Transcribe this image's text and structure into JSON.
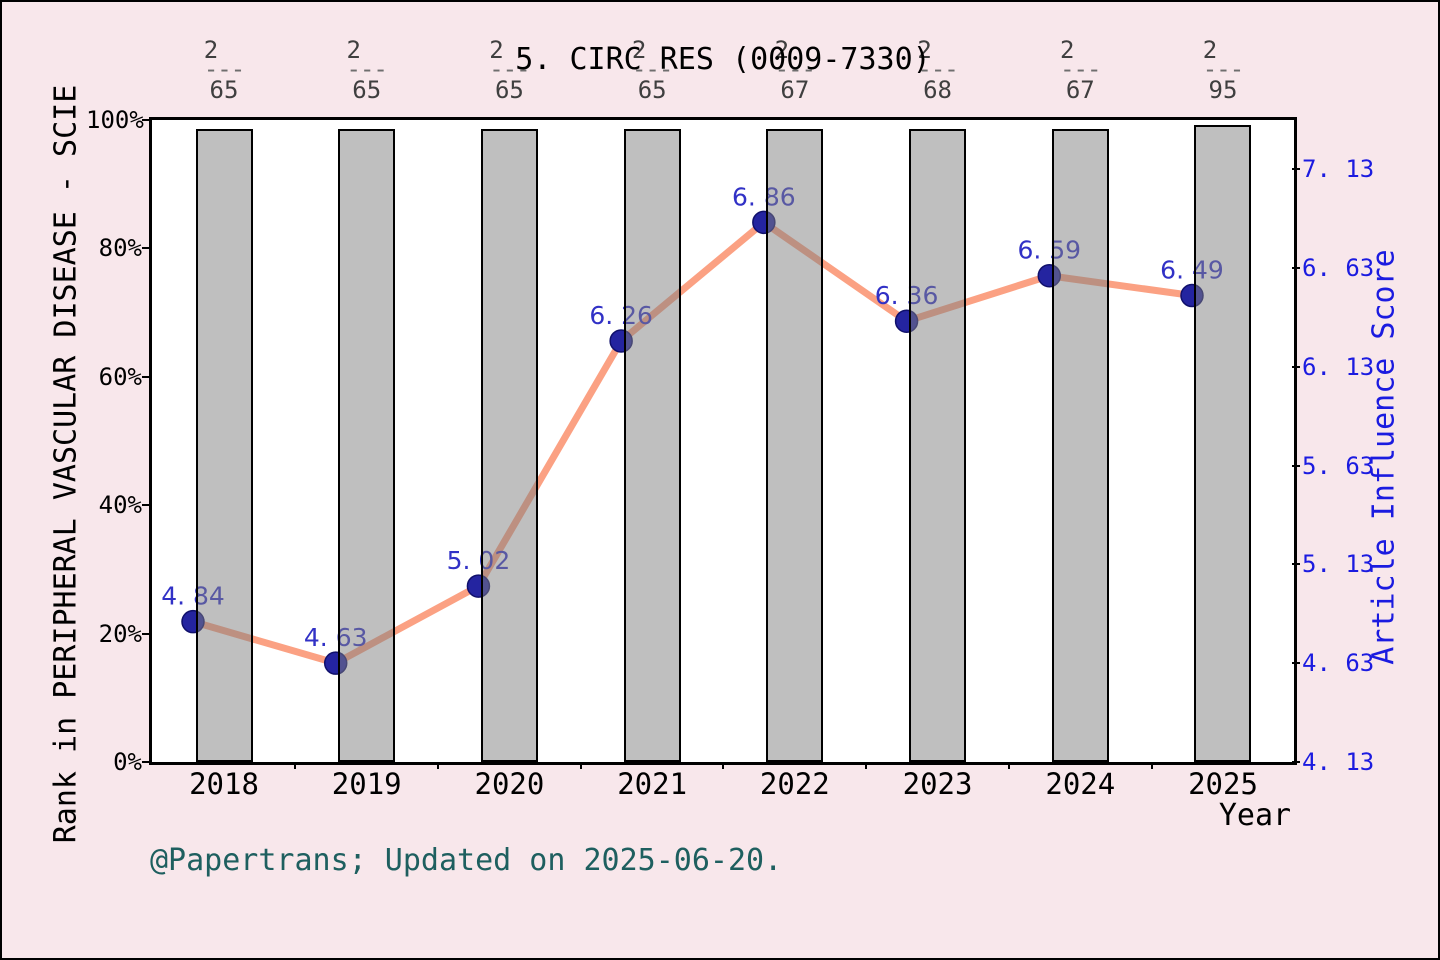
{
  "title": "5. CIRC RES (0009-7330)",
  "footer": "@Papertrans; Updated on 2025-06-20.",
  "axes": {
    "left_title": "Rank in PERIPHERAL VASCULAR DISEASE - SCIE",
    "right_title": "Article Influence Score",
    "x_title": "Year",
    "left_ticks": [
      "100%",
      "80%",
      "60%",
      "40%",
      "20%",
      "0%"
    ],
    "right_ticks": [
      "7. 13",
      "6. 63",
      "6. 13",
      "5. 63",
      "5. 13",
      "4. 63",
      "4. 13"
    ],
    "x_ticks": [
      "2018",
      "2019",
      "2020",
      "2021",
      "2022",
      "2023",
      "2024",
      "2025"
    ]
  },
  "fractions": [
    {
      "num": "2",
      "den": "65"
    },
    {
      "num": "2",
      "den": "65"
    },
    {
      "num": "2",
      "den": "65"
    },
    {
      "num": "2",
      "den": "65"
    },
    {
      "num": "2",
      "den": "67"
    },
    {
      "num": "2",
      "den": "68"
    },
    {
      "num": "2",
      "den": "67"
    },
    {
      "num": "2",
      "den": "95"
    }
  ],
  "point_labels": [
    "4. 84",
    "4. 63",
    "5. 02",
    "6. 26",
    "6. 86",
    "6. 36",
    "6. 59",
    "6. 49"
  ],
  "bars_percent": [
    98.6,
    98.6,
    98.6,
    98.6,
    98.6,
    98.6,
    98.6,
    99.2
  ],
  "colors": {
    "background": "#F8E7EB",
    "line": "#FBA183",
    "dot_fill": "#2424A0",
    "dot_edge": "#10106B",
    "value_label": "#3131C6",
    "right_axis": "#1b1be0",
    "bar_fill": "rgba(127,127,127,0.5)",
    "footer_text": "#1e5f5f"
  },
  "chart_data": {
    "type": "line",
    "title": "5. CIRC RES (0009-7330)",
    "xlabel": "Year",
    "ylabel_left": "Rank in PERIPHERAL VASCULAR DISEASE - SCIE",
    "ylabel_right": "Article Influence Score",
    "x": [
      2018,
      2019,
      2020,
      2021,
      2022,
      2023,
      2024,
      2025
    ],
    "series": [
      {
        "name": "Article Influence Score",
        "type": "line",
        "axis": "right",
        "values": [
          4.84,
          4.63,
          5.02,
          6.26,
          6.86,
          6.36,
          6.59,
          6.49
        ]
      },
      {
        "name": "Rank in PERIPHERAL VASCULAR DISEASE - SCIE",
        "type": "bar",
        "axis": "left",
        "values_percent": [
          98.6,
          98.6,
          98.6,
          98.6,
          98.6,
          98.6,
          98.6,
          99.2
        ],
        "rank_labels": [
          "2/65",
          "2/65",
          "2/65",
          "2/65",
          "2/67",
          "2/68",
          "2/67",
          "2/95"
        ]
      }
    ],
    "ylim_left": [
      0,
      100
    ],
    "ylim_right": [
      4.13,
      7.13
    ],
    "right_tick_values": [
      7.13,
      6.63,
      6.13,
      5.63,
      5.13,
      4.63,
      4.13
    ],
    "left_tick_values": [
      100,
      80,
      60,
      40,
      20,
      0
    ],
    "grid": false,
    "legend_position": "none"
  }
}
